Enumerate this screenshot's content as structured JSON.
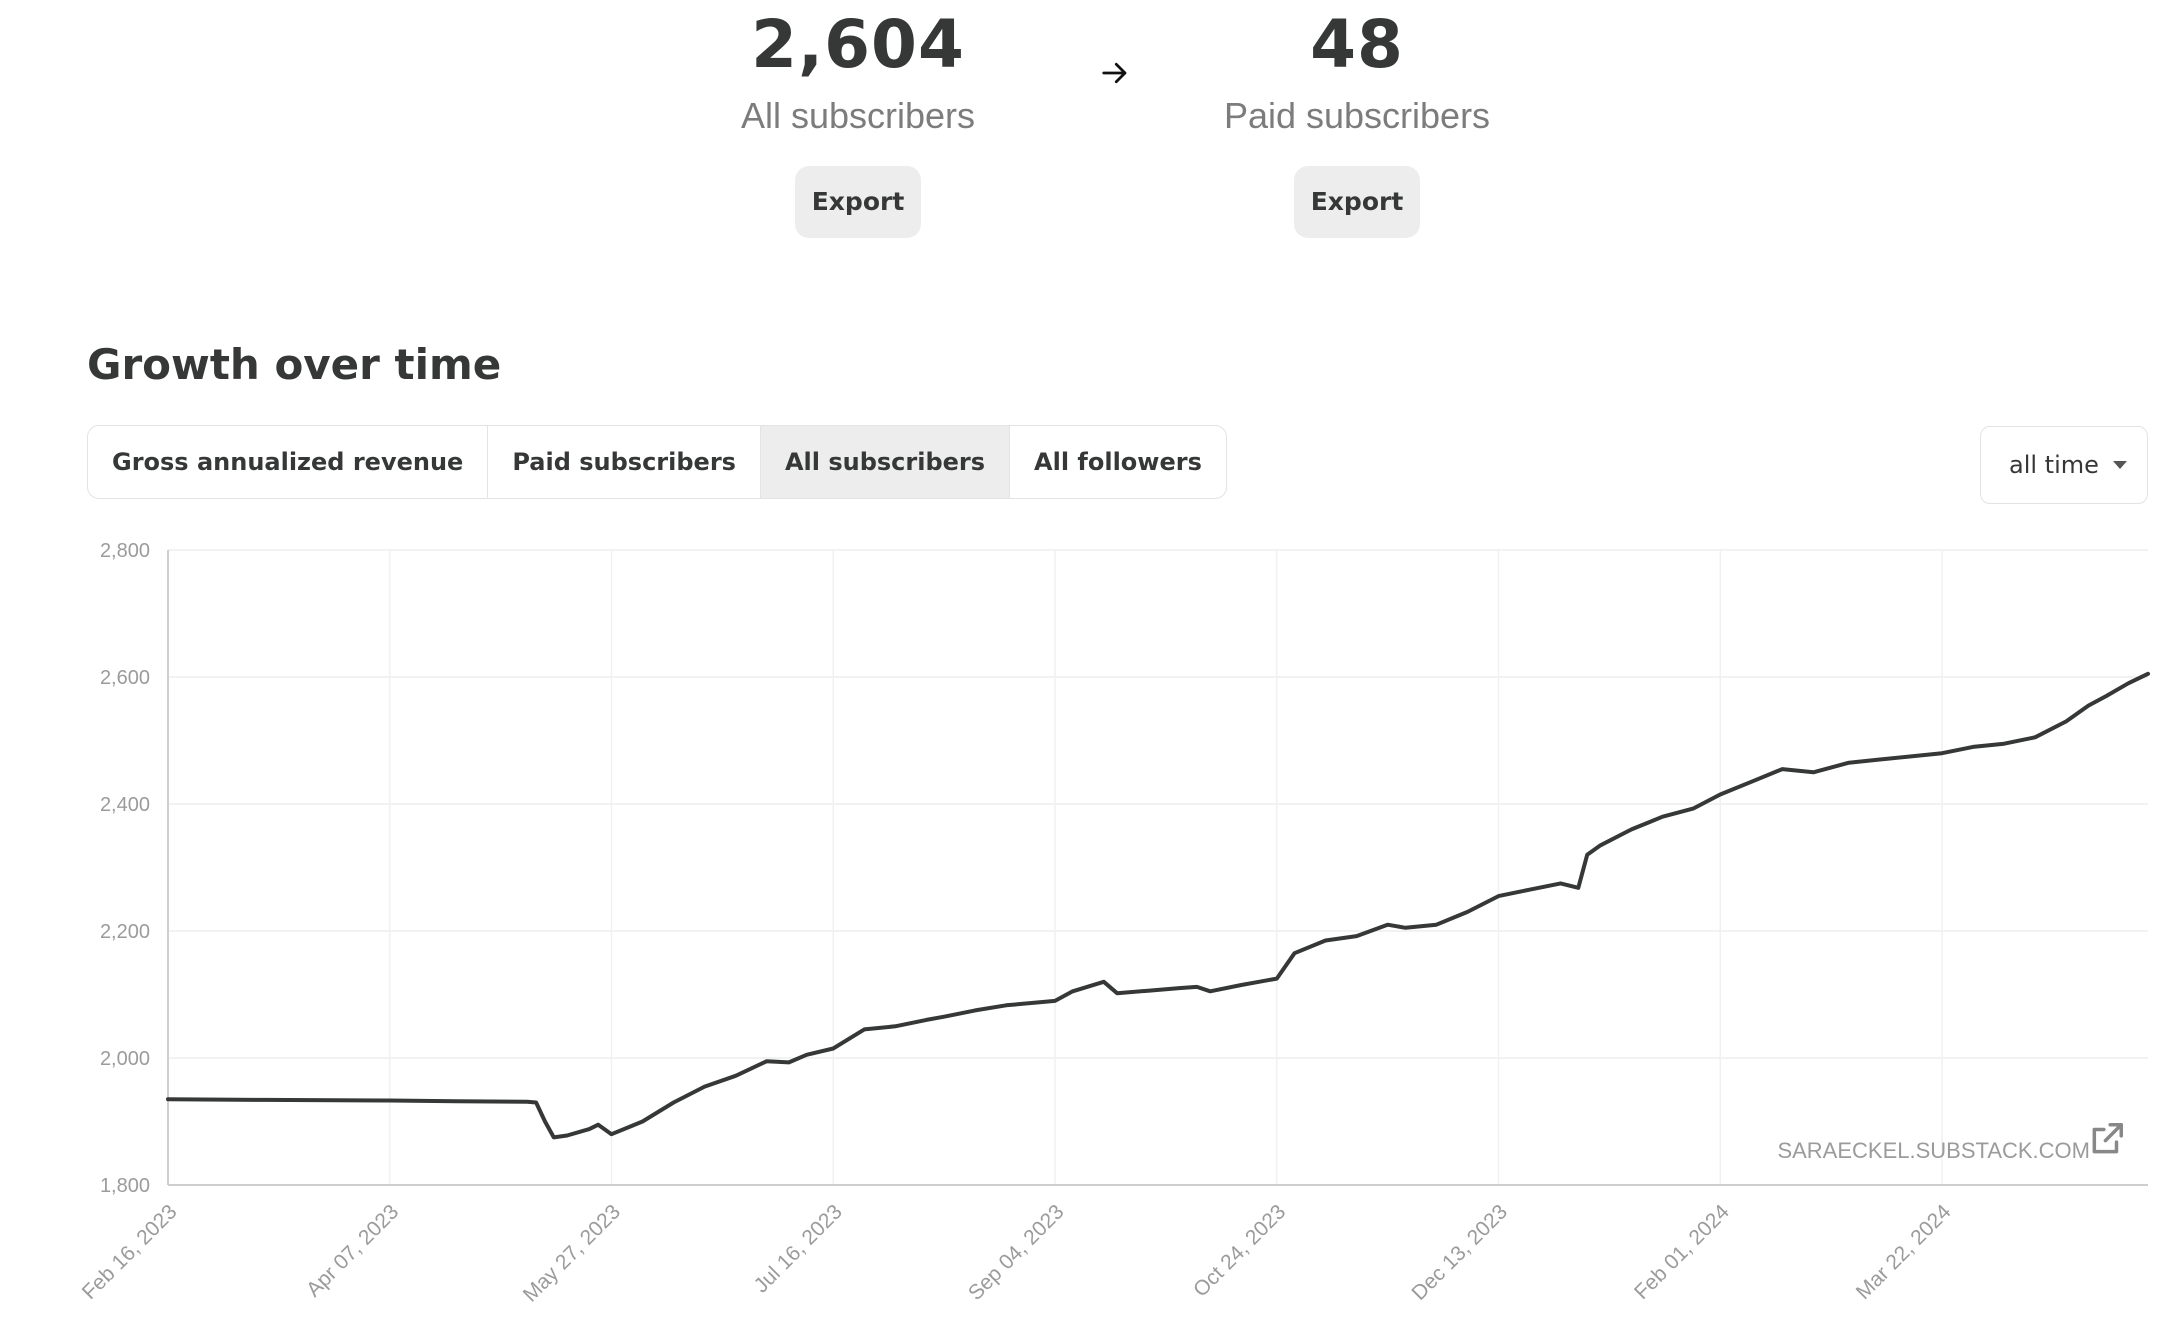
{
  "stats": {
    "all": {
      "value": "2,604",
      "label": "All subscribers",
      "export_label": "Export"
    },
    "paid": {
      "value": "48",
      "label": "Paid subscribers",
      "export_label": "Export"
    },
    "arrow_icon": "arrow-right-icon"
  },
  "growth": {
    "title": "Growth over time",
    "tabs": [
      {
        "label": "Gross annualized revenue",
        "active": false
      },
      {
        "label": "Paid subscribers",
        "active": false
      },
      {
        "label": "All subscribers",
        "active": true
      },
      {
        "label": "All followers",
        "active": false
      }
    ],
    "range": {
      "selected": "all time",
      "icon": "caret-down-icon"
    }
  },
  "chart_data": {
    "type": "line",
    "title": "",
    "xlabel": "",
    "ylabel": "",
    "ylim": [
      1800,
      2800
    ],
    "yticks": [
      "1,800",
      "2,000",
      "2,200",
      "2,400",
      "2,600",
      "2,800"
    ],
    "xticks": [
      "Feb 16, 2023",
      "Apr 07, 2023",
      "May 27, 2023",
      "Jul 16, 2023",
      "Sep 04, 2023",
      "Oct 24, 2023",
      "Dec 13, 2023",
      "Feb 01, 2024",
      "Mar 22, 2024"
    ],
    "grid": true,
    "line_color": "#363737",
    "watermark": "SARAECKEL.SUBSTACK.COM",
    "watermark_icon": "external-link-icon",
    "series": [
      {
        "x": [
          "2023-02-16",
          "2023-03-10",
          "2023-04-07",
          "2023-04-22",
          "2023-05-08",
          "2023-05-10",
          "2023-05-12",
          "2023-05-14",
          "2023-05-17",
          "2023-05-22",
          "2023-05-24",
          "2023-05-27",
          "2023-06-03",
          "2023-06-10",
          "2023-06-17",
          "2023-06-24",
          "2023-07-01",
          "2023-07-06",
          "2023-07-10",
          "2023-07-16",
          "2023-07-23",
          "2023-07-30",
          "2023-08-06",
          "2023-08-10",
          "2023-08-17",
          "2023-08-24",
          "2023-09-04",
          "2023-09-08",
          "2023-09-15",
          "2023-09-18",
          "2023-09-25",
          "2023-10-02",
          "2023-10-06",
          "2023-10-09",
          "2023-10-16",
          "2023-10-20",
          "2023-10-24",
          "2023-10-28",
          "2023-11-04",
          "2023-11-11",
          "2023-11-18",
          "2023-11-22",
          "2023-11-29",
          "2023-12-06",
          "2023-12-13",
          "2023-12-20",
          "2023-12-27",
          "2023-12-31",
          "2024-01-02",
          "2024-01-03",
          "2024-01-05",
          "2024-01-12",
          "2024-01-19",
          "2024-01-26",
          "2024-02-01",
          "2024-02-08",
          "2024-02-15",
          "2024-02-22",
          "2024-03-01",
          "2024-03-08",
          "2024-03-15",
          "2024-03-22",
          "2024-03-29",
          "2024-04-05",
          "2024-04-12",
          "2024-04-19",
          "2024-04-24",
          "2024-04-28",
          "2024-05-03",
          "2024-05-08"
        ],
        "y": [
          1935,
          1934,
          1933,
          1932,
          1931,
          1930,
          1900,
          1875,
          1878,
          1888,
          1895,
          1880,
          1900,
          1930,
          1955,
          1972,
          1995,
          1993,
          2005,
          2015,
          2045,
          2050,
          2060,
          2065,
          2075,
          2083,
          2090,
          2105,
          2120,
          2102,
          2106,
          2110,
          2112,
          2105,
          2115,
          2120,
          2125,
          2165,
          2185,
          2192,
          2210,
          2205,
          2210,
          2230,
          2255,
          2265,
          2275,
          2268,
          2320,
          2325,
          2335,
          2360,
          2380,
          2393,
          2415,
          2435,
          2455,
          2450,
          2465,
          2470,
          2475,
          2480,
          2490,
          2495,
          2505,
          2530,
          2555,
          2570,
          2590,
          2605
        ]
      }
    ]
  }
}
